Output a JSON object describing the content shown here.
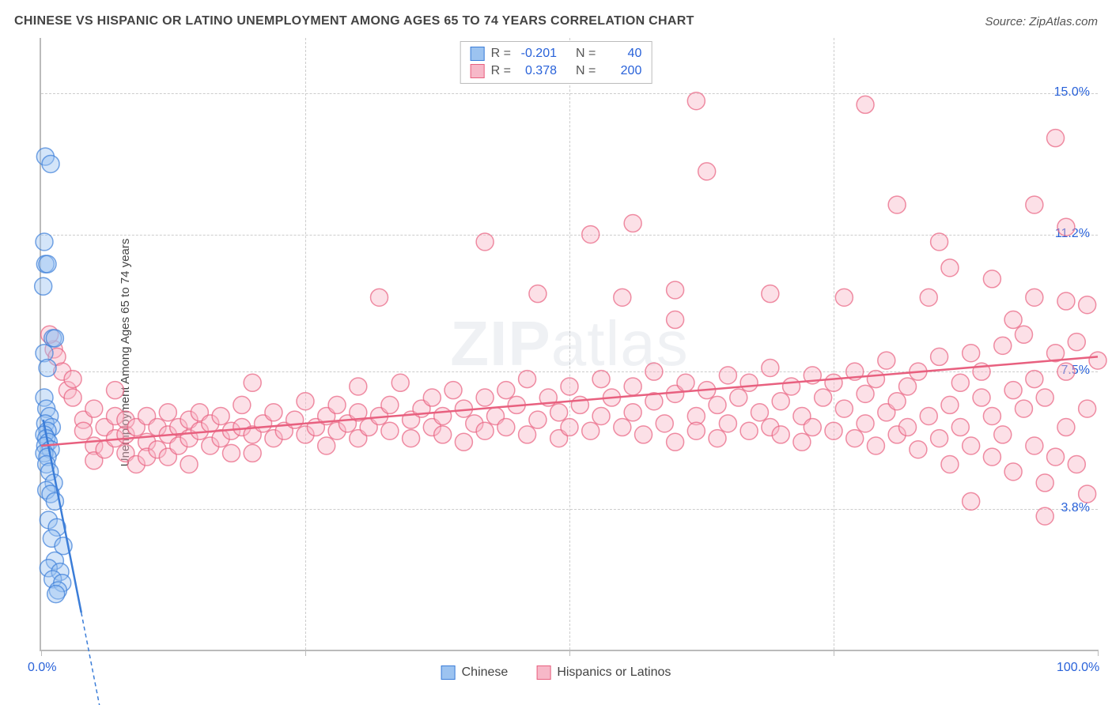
{
  "title": "CHINESE VS HISPANIC OR LATINO UNEMPLOYMENT AMONG AGES 65 TO 74 YEARS CORRELATION CHART",
  "source": "Source: ZipAtlas.com",
  "ylabel": "Unemployment Among Ages 65 to 74 years",
  "watermark": {
    "bold": "ZIP",
    "light": "atlas"
  },
  "chart": {
    "type": "scatter",
    "xlim": [
      0,
      100
    ],
    "ylim": [
      0,
      16.5
    ],
    "xticks": [
      0,
      25,
      50,
      75,
      100
    ],
    "xtick_labels": [
      "0.0%",
      "",
      "",
      "",
      "100.0%"
    ],
    "yticks": [
      3.8,
      7.5,
      11.2,
      15.0
    ],
    "ytick_labels": [
      "3.8%",
      "7.5%",
      "11.2%",
      "15.0%"
    ],
    "grid_color": "#cccccc",
    "axis_color": "#bbbbbb",
    "tick_label_color": "#2962d9",
    "background_color": "#ffffff",
    "marker_radius": 11,
    "marker_stroke_width": 1.5,
    "marker_fill_opacity": 0.18,
    "trend_line_width": 2.5,
    "series": [
      {
        "name": "Chinese",
        "color_stroke": "#3b7dd8",
        "color_fill": "#9cc3f0",
        "r": -0.201,
        "n": 40,
        "trend": {
          "x1": 0.2,
          "y1": 6.2,
          "x2": 3.8,
          "y2": 1.0
        },
        "trend_dash": {
          "x1": 3.8,
          "y1": 1.0,
          "x2": 6.0,
          "y2": -2.2
        },
        "points": [
          [
            0.4,
            13.3
          ],
          [
            0.9,
            13.1
          ],
          [
            0.3,
            11.0
          ],
          [
            0.4,
            10.4
          ],
          [
            0.6,
            10.4
          ],
          [
            0.2,
            9.8
          ],
          [
            1.1,
            8.4
          ],
          [
            1.3,
            8.4
          ],
          [
            0.3,
            8.0
          ],
          [
            0.6,
            7.6
          ],
          [
            0.3,
            6.8
          ],
          [
            0.5,
            6.5
          ],
          [
            0.8,
            6.3
          ],
          [
            0.4,
            6.1
          ],
          [
            1.0,
            6.0
          ],
          [
            0.6,
            5.9
          ],
          [
            0.3,
            5.8
          ],
          [
            0.5,
            5.7
          ],
          [
            0.7,
            5.6
          ],
          [
            0.4,
            5.5
          ],
          [
            0.9,
            5.4
          ],
          [
            0.3,
            5.3
          ],
          [
            0.6,
            5.2
          ],
          [
            0.5,
            5.0
          ],
          [
            0.8,
            4.8
          ],
          [
            1.2,
            4.5
          ],
          [
            0.5,
            4.3
          ],
          [
            0.9,
            4.2
          ],
          [
            1.3,
            4.0
          ],
          [
            0.7,
            3.5
          ],
          [
            1.5,
            3.3
          ],
          [
            1.0,
            3.0
          ],
          [
            2.1,
            2.8
          ],
          [
            1.3,
            2.4
          ],
          [
            0.7,
            2.2
          ],
          [
            1.8,
            2.1
          ],
          [
            1.1,
            1.9
          ],
          [
            2.0,
            1.8
          ],
          [
            1.6,
            1.6
          ],
          [
            1.4,
            1.5
          ]
        ]
      },
      {
        "name": "Hispanics or Latinos",
        "color_stroke": "#e8607f",
        "color_fill": "#f7b8c8",
        "r": 0.378,
        "n": 200,
        "trend": {
          "x1": 0,
          "y1": 5.5,
          "x2": 100,
          "y2": 7.9
        },
        "points": [
          [
            62,
            14.8
          ],
          [
            78,
            14.7
          ],
          [
            96,
            13.8
          ],
          [
            63,
            12.9
          ],
          [
            81,
            12.0
          ],
          [
            94,
            12.0
          ],
          [
            52,
            11.2
          ],
          [
            56,
            11.5
          ],
          [
            85,
            11.0
          ],
          [
            97,
            11.4
          ],
          [
            42,
            11.0
          ],
          [
            32,
            9.5
          ],
          [
            47,
            9.6
          ],
          [
            55,
            9.5
          ],
          [
            60,
            9.7
          ],
          [
            69,
            9.6
          ],
          [
            76,
            9.5
          ],
          [
            84,
            9.5
          ],
          [
            90,
            10.0
          ],
          [
            94,
            9.5
          ],
          [
            97,
            9.4
          ],
          [
            99,
            9.3
          ],
          [
            86,
            10.3
          ],
          [
            92,
            8.9
          ],
          [
            60,
            8.9
          ],
          [
            1.2,
            8.1
          ],
          [
            1.5,
            7.9
          ],
          [
            0.8,
            8.5
          ],
          [
            2.0,
            7.5
          ],
          [
            2.5,
            7.0
          ],
          [
            3,
            6.8
          ],
          [
            3,
            7.3
          ],
          [
            4,
            6.2
          ],
          [
            4,
            5.9
          ],
          [
            5,
            6.5
          ],
          [
            5,
            5.5
          ],
          [
            5,
            5.1
          ],
          [
            6,
            6.0
          ],
          [
            6,
            5.4
          ],
          [
            7,
            6.3
          ],
          [
            7,
            5.7
          ],
          [
            7,
            7.0
          ],
          [
            8,
            5.8
          ],
          [
            8,
            6.2
          ],
          [
            8,
            5.3
          ],
          [
            9,
            5.0
          ],
          [
            9,
            6.0
          ],
          [
            10,
            5.6
          ],
          [
            10,
            6.3
          ],
          [
            10,
            5.2
          ],
          [
            11,
            6.0
          ],
          [
            11,
            5.4
          ],
          [
            12,
            5.8
          ],
          [
            12,
            6.4
          ],
          [
            12,
            5.2
          ],
          [
            13,
            6.0
          ],
          [
            13,
            5.5
          ],
          [
            14,
            6.2
          ],
          [
            14,
            5.7
          ],
          [
            14,
            5.0
          ],
          [
            15,
            5.9
          ],
          [
            15,
            6.4
          ],
          [
            16,
            5.5
          ],
          [
            16,
            6.1
          ],
          [
            17,
            5.7
          ],
          [
            17,
            6.3
          ],
          [
            18,
            5.9
          ],
          [
            18,
            5.3
          ],
          [
            19,
            6.0
          ],
          [
            19,
            6.6
          ],
          [
            20,
            5.8
          ],
          [
            20,
            5.3
          ],
          [
            20,
            7.2
          ],
          [
            21,
            6.1
          ],
          [
            22,
            5.7
          ],
          [
            22,
            6.4
          ],
          [
            23,
            5.9
          ],
          [
            24,
            6.2
          ],
          [
            25,
            5.8
          ],
          [
            25,
            6.7
          ],
          [
            26,
            6.0
          ],
          [
            27,
            5.5
          ],
          [
            27,
            6.3
          ],
          [
            28,
            6.6
          ],
          [
            28,
            5.9
          ],
          [
            29,
            6.1
          ],
          [
            30,
            6.4
          ],
          [
            30,
            5.7
          ],
          [
            30,
            7.1
          ],
          [
            31,
            6.0
          ],
          [
            32,
            6.3
          ],
          [
            33,
            6.6
          ],
          [
            33,
            5.9
          ],
          [
            34,
            7.2
          ],
          [
            35,
            5.7
          ],
          [
            35,
            6.2
          ],
          [
            36,
            6.5
          ],
          [
            37,
            6.0
          ],
          [
            37,
            6.8
          ],
          [
            38,
            5.8
          ],
          [
            38,
            6.3
          ],
          [
            39,
            7.0
          ],
          [
            40,
            5.6
          ],
          [
            40,
            6.5
          ],
          [
            41,
            6.1
          ],
          [
            42,
            6.8
          ],
          [
            42,
            5.9
          ],
          [
            43,
            6.3
          ],
          [
            44,
            7.0
          ],
          [
            44,
            6.0
          ],
          [
            45,
            6.6
          ],
          [
            46,
            5.8
          ],
          [
            46,
            7.3
          ],
          [
            47,
            6.2
          ],
          [
            48,
            6.8
          ],
          [
            49,
            5.7
          ],
          [
            49,
            6.4
          ],
          [
            50,
            7.1
          ],
          [
            50,
            6.0
          ],
          [
            51,
            6.6
          ],
          [
            52,
            5.9
          ],
          [
            53,
            7.3
          ],
          [
            53,
            6.3
          ],
          [
            54,
            6.8
          ],
          [
            55,
            6.0
          ],
          [
            56,
            7.1
          ],
          [
            56,
            6.4
          ],
          [
            57,
            5.8
          ],
          [
            58,
            6.7
          ],
          [
            58,
            7.5
          ],
          [
            59,
            6.1
          ],
          [
            60,
            6.9
          ],
          [
            60,
            5.6
          ],
          [
            61,
            7.2
          ],
          [
            62,
            6.3
          ],
          [
            62,
            5.9
          ],
          [
            63,
            7.0
          ],
          [
            64,
            6.6
          ],
          [
            64,
            5.7
          ],
          [
            65,
            7.4
          ],
          [
            65,
            6.1
          ],
          [
            66,
            6.8
          ],
          [
            67,
            5.9
          ],
          [
            67,
            7.2
          ],
          [
            68,
            6.4
          ],
          [
            69,
            6.0
          ],
          [
            69,
            7.6
          ],
          [
            70,
            6.7
          ],
          [
            70,
            5.8
          ],
          [
            71,
            7.1
          ],
          [
            72,
            6.3
          ],
          [
            72,
            5.6
          ],
          [
            73,
            7.4
          ],
          [
            73,
            6.0
          ],
          [
            74,
            6.8
          ],
          [
            75,
            5.9
          ],
          [
            75,
            7.2
          ],
          [
            76,
            6.5
          ],
          [
            77,
            5.7
          ],
          [
            77,
            7.5
          ],
          [
            78,
            6.1
          ],
          [
            78,
            6.9
          ],
          [
            79,
            5.5
          ],
          [
            79,
            7.3
          ],
          [
            80,
            6.4
          ],
          [
            80,
            7.8
          ],
          [
            81,
            5.8
          ],
          [
            81,
            6.7
          ],
          [
            82,
            7.1
          ],
          [
            82,
            6.0
          ],
          [
            83,
            5.4
          ],
          [
            83,
            7.5
          ],
          [
            84,
            6.3
          ],
          [
            85,
            5.7
          ],
          [
            85,
            7.9
          ],
          [
            86,
            6.6
          ],
          [
            86,
            5.0
          ],
          [
            87,
            7.2
          ],
          [
            87,
            6.0
          ],
          [
            88,
            8.0
          ],
          [
            88,
            5.5
          ],
          [
            89,
            6.8
          ],
          [
            89,
            7.5
          ],
          [
            90,
            5.2
          ],
          [
            90,
            6.3
          ],
          [
            91,
            8.2
          ],
          [
            91,
            5.8
          ],
          [
            92,
            7.0
          ],
          [
            92,
            4.8
          ],
          [
            93,
            6.5
          ],
          [
            93,
            8.5
          ],
          [
            94,
            5.5
          ],
          [
            94,
            7.3
          ],
          [
            95,
            4.5
          ],
          [
            95,
            6.8
          ],
          [
            96,
            8.0
          ],
          [
            96,
            5.2
          ],
          [
            97,
            7.5
          ],
          [
            97,
            6.0
          ],
          [
            98,
            5.0
          ],
          [
            98,
            8.3
          ],
          [
            99,
            6.5
          ],
          [
            99,
            4.2
          ],
          [
            100,
            7.8
          ],
          [
            88,
            4.0
          ],
          [
            95,
            3.6
          ]
        ]
      }
    ]
  },
  "legend_top": {
    "r_label": "R =",
    "n_label": "N ="
  },
  "legend_bottom": {
    "items": [
      "Chinese",
      "Hispanics or Latinos"
    ]
  }
}
